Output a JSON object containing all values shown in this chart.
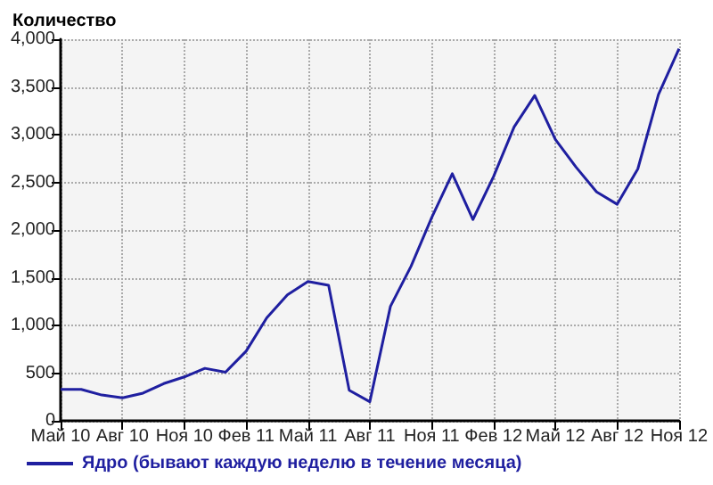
{
  "chart_data": {
    "type": "line",
    "ylabel": "Количество",
    "categories": [
      "Май 10",
      null,
      null,
      "Авг 10",
      null,
      null,
      "Ноя 10",
      null,
      null,
      "Фев 11",
      null,
      null,
      "Май 11",
      null,
      null,
      "Авг 11",
      null,
      null,
      "Ноя 11",
      null,
      null,
      "Фев 12",
      null,
      null,
      "Май 12",
      null,
      null,
      "Авг 12",
      null,
      null,
      "Ноя 12"
    ],
    "series": [
      {
        "name": "Ядро (бывают каждую неделю в течение месяца)",
        "color": "#1f1fa0",
        "values": [
          330,
          330,
          270,
          240,
          290,
          390,
          460,
          550,
          510,
          730,
          1080,
          1320,
          1460,
          1420,
          320,
          200,
          1200,
          1620,
          2130,
          2590,
          2110,
          2560,
          3080,
          3410,
          2950,
          2660,
          2400,
          2270,
          2640,
          3420,
          3900
        ]
      }
    ],
    "ylim": [
      0,
      4000
    ],
    "yticks": [
      0,
      500,
      {
        "value": 1000,
        "label": "1,000"
      },
      {
        "value": 1500,
        "label": "1,500"
      },
      {
        "value": 2000,
        "label": "2,000"
      },
      {
        "value": 2500,
        "label": "2,500"
      },
      {
        "value": 3000,
        "label": "3,000"
      },
      {
        "value": 3500,
        "label": "3,500"
      },
      {
        "value": 4000,
        "label": "4,000"
      }
    ],
    "grid": true,
    "legend": "bottom left",
    "marker": "none",
    "line_style": "solid"
  }
}
